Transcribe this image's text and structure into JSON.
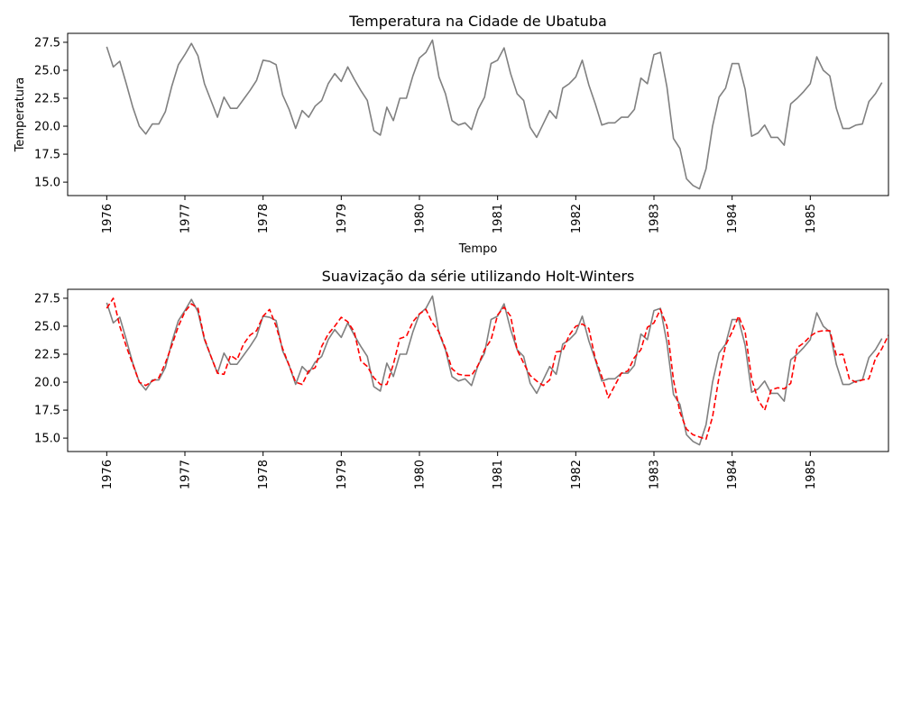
{
  "chart_data": [
    {
      "type": "line",
      "title": "Temperatura na Cidade de Ubatuba",
      "xlabel": "Tempo",
      "ylabel": "Temperatura",
      "x_tick_labels": [
        "1976",
        "1977",
        "1978",
        "1979",
        "1980",
        "1981",
        "1982",
        "1983",
        "1984",
        "1985"
      ],
      "y_ticks": [
        15.0,
        17.5,
        20.0,
        22.5,
        25.0,
        27.5
      ],
      "y_tick_labels": [
        "15.0",
        "17.5",
        "20.0",
        "22.5",
        "25.0",
        "27.5"
      ],
      "xlim": [
        1975.5,
        1986.0
      ],
      "ylim": [
        13.8,
        28.3
      ],
      "grid": false,
      "x_start": 1976.0,
      "x_step": 0.08333,
      "series": [
        {
          "name": "",
          "color": "#808080",
          "style": "solid",
          "values": [
            27.1,
            25.3,
            25.8,
            23.8,
            21.7,
            20.0,
            19.3,
            20.2,
            20.2,
            21.3,
            23.6,
            25.5,
            26.4,
            27.4,
            26.3,
            23.8,
            22.3,
            20.8,
            22.6,
            21.6,
            21.6,
            22.4,
            23.2,
            24.1,
            25.9,
            25.8,
            25.5,
            22.8,
            21.5,
            19.8,
            21.4,
            20.8,
            21.8,
            22.3,
            23.8,
            24.7,
            24.0,
            25.3,
            24.2,
            23.2,
            22.3,
            19.6,
            19.2,
            21.7,
            20.5,
            22.5,
            22.5,
            24.5,
            26.1,
            26.6,
            27.7,
            24.4,
            22.9,
            20.5,
            20.1,
            20.3,
            19.7,
            21.5,
            22.6,
            25.6,
            25.9,
            27.0,
            24.7,
            22.9,
            22.3,
            19.9,
            19.0,
            20.2,
            21.4,
            20.7,
            23.4,
            23.8,
            24.4,
            25.9,
            23.7,
            22.0,
            20.1,
            20.3,
            20.3,
            20.8,
            20.8,
            21.5,
            24.3,
            23.8,
            26.4,
            26.6,
            23.5,
            18.9,
            18.0,
            15.3,
            14.7,
            14.4,
            16.2,
            20.0,
            22.6,
            23.4,
            25.6,
            25.6,
            23.3,
            19.1,
            19.4,
            20.1,
            19.0,
            19.0,
            18.3,
            22.0,
            22.5,
            23.1,
            23.8,
            26.2,
            25.0,
            24.5,
            21.6,
            19.8,
            19.8,
            20.1,
            20.2,
            22.2,
            22.9,
            23.9
          ]
        }
      ]
    },
    {
      "type": "line",
      "title": "Suavização da série utilizando Holt-Winters",
      "xlabel": "",
      "ylabel": "",
      "x_tick_labels": [
        "1976",
        "1977",
        "1978",
        "1979",
        "1980",
        "1981",
        "1982",
        "1983",
        "1984",
        "1985"
      ],
      "y_ticks": [
        15.0,
        17.5,
        20.0,
        22.5,
        25.0,
        27.5
      ],
      "y_tick_labels": [
        "15.0",
        "17.5",
        "20.0",
        "22.5",
        "25.0",
        "27.5"
      ],
      "xlim": [
        1975.5,
        1986.0
      ],
      "ylim": [
        13.8,
        28.3
      ],
      "grid": false,
      "x_start": 1976.0,
      "x_step": 0.08333,
      "series": [
        {
          "name": "",
          "color": "#808080",
          "style": "solid",
          "values": [
            27.1,
            25.3,
            25.8,
            23.8,
            21.7,
            20.0,
            19.3,
            20.2,
            20.2,
            21.3,
            23.6,
            25.5,
            26.4,
            27.4,
            26.3,
            23.8,
            22.3,
            20.8,
            22.6,
            21.6,
            21.6,
            22.4,
            23.2,
            24.1,
            25.9,
            25.8,
            25.5,
            22.8,
            21.5,
            19.8,
            21.4,
            20.8,
            21.8,
            22.3,
            23.8,
            24.7,
            24.0,
            25.3,
            24.2,
            23.2,
            22.3,
            19.6,
            19.2,
            21.7,
            20.5,
            22.5,
            22.5,
            24.5,
            26.1,
            26.6,
            27.7,
            24.4,
            22.9,
            20.5,
            20.1,
            20.3,
            19.7,
            21.5,
            22.6,
            25.6,
            25.9,
            27.0,
            24.7,
            22.9,
            22.3,
            19.9,
            19.0,
            20.2,
            21.4,
            20.7,
            23.4,
            23.8,
            24.4,
            25.9,
            23.7,
            22.0,
            20.1,
            20.3,
            20.3,
            20.8,
            20.8,
            21.5,
            24.3,
            23.8,
            26.4,
            26.6,
            23.5,
            18.9,
            18.0,
            15.3,
            14.7,
            14.4,
            16.2,
            20.0,
            22.6,
            23.4,
            25.6,
            25.6,
            23.3,
            19.1,
            19.4,
            20.1,
            19.0,
            19.0,
            18.3,
            22.0,
            22.5,
            23.1,
            23.8,
            26.2,
            25.0,
            24.5,
            21.6,
            19.8,
            19.8,
            20.1,
            20.2,
            22.2,
            22.9,
            23.9
          ]
        },
        {
          "name": "",
          "color": "#ff0000",
          "style": "dashed",
          "values": [
            26.6,
            27.5,
            25.0,
            23.2,
            21.6,
            20.0,
            19.7,
            20.1,
            20.4,
            21.7,
            23.3,
            25.0,
            26.3,
            27.0,
            26.6,
            23.9,
            22.3,
            20.8,
            20.7,
            22.4,
            22.0,
            23.4,
            24.2,
            24.6,
            25.9,
            26.5,
            25.0,
            23.0,
            21.5,
            20.0,
            19.8,
            21.0,
            21.3,
            23.2,
            24.3,
            25.0,
            25.8,
            25.4,
            24.5,
            21.9,
            21.4,
            20.4,
            19.8,
            19.8,
            21.6,
            23.9,
            24.1,
            25.4,
            26.1,
            26.5,
            25.3,
            24.5,
            23.0,
            21.2,
            20.7,
            20.6,
            20.6,
            21.5,
            22.9,
            23.8,
            26.0,
            26.7,
            25.9,
            22.9,
            21.7,
            20.6,
            20.1,
            19.7,
            20.2,
            22.7,
            22.8,
            24.2,
            25.0,
            25.2,
            24.8,
            22.1,
            20.5,
            18.6,
            19.7,
            20.8,
            21.0,
            22.2,
            22.9,
            24.9,
            25.3,
            26.5,
            25.0,
            20.2,
            17.3,
            15.8,
            15.3,
            15.1,
            14.9,
            16.9,
            20.5,
            23.3,
            24.5,
            25.9,
            24.5,
            20.3,
            18.4,
            17.5,
            19.3,
            19.5,
            19.4,
            19.9,
            23.1,
            23.5,
            24.1,
            24.5,
            24.6,
            24.6,
            22.4,
            22.5,
            20.3,
            20.0,
            20.2,
            20.3,
            22.1,
            23.0,
            24.2
          ]
        }
      ]
    }
  ]
}
